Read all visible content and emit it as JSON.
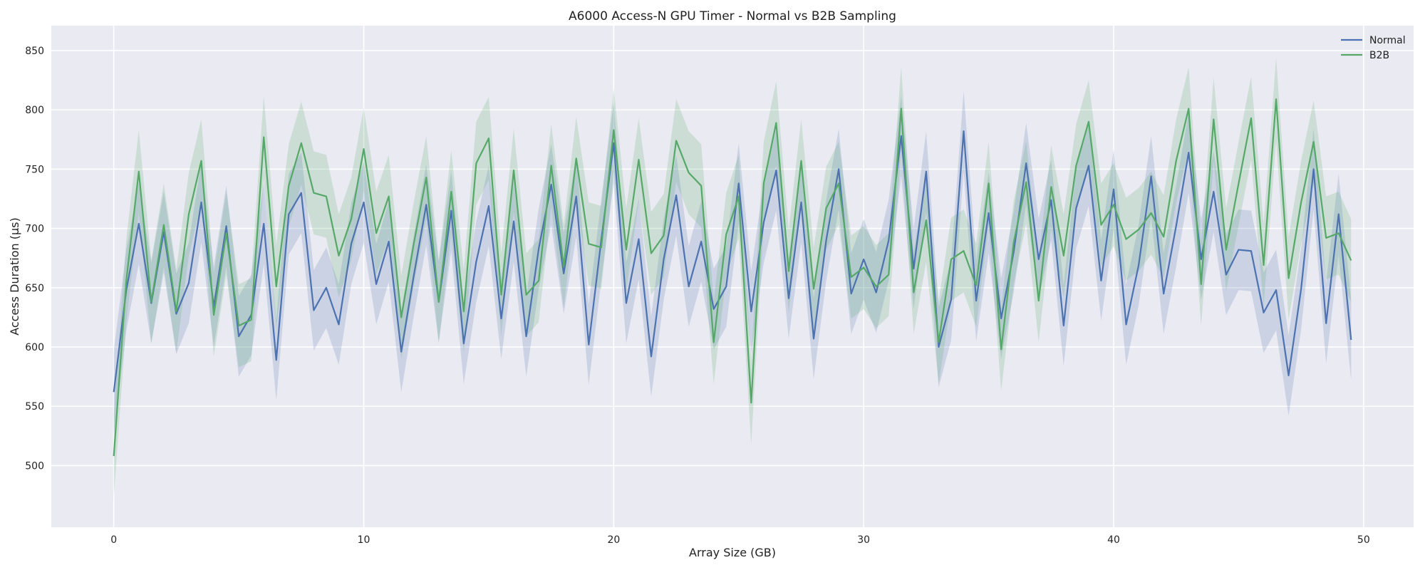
{
  "chart_data": {
    "type": "line",
    "title": "A6000 Access-N GPU Timer - Normal vs B2B Sampling",
    "xlabel": "Array Size (GB)",
    "ylabel": "Access Duration (μs)",
    "xlim": [
      -2.5,
      52.0
    ],
    "ylim": [
      448,
      871
    ],
    "xticks": [
      0,
      10,
      20,
      30,
      40,
      50
    ],
    "yticks": [
      500,
      550,
      600,
      650,
      700,
      750,
      800,
      850
    ],
    "grid": true,
    "legend_position": "top-right",
    "background_color": "#eaeaf2",
    "x": [
      0,
      0.5,
      1,
      1.5,
      2,
      2.5,
      3,
      3.5,
      4,
      4.5,
      5,
      5.5,
      6,
      6.5,
      7,
      7.5,
      8,
      8.5,
      9,
      9.5,
      10,
      10.5,
      11,
      11.5,
      12,
      12.5,
      13,
      13.5,
      14,
      14.5,
      15,
      15.5,
      16,
      16.5,
      17,
      17.5,
      18,
      18.5,
      19,
      19.5,
      20,
      20.5,
      21,
      21.5,
      22,
      22.5,
      23,
      23.5,
      24,
      24.5,
      25,
      25.5,
      26,
      26.5,
      27,
      27.5,
      28,
      28.5,
      29,
      29.5,
      30,
      30.5,
      31,
      31.5,
      32,
      32.5,
      33,
      33.5,
      34,
      34.5,
      35,
      35.5,
      36,
      36.5,
      37,
      37.5,
      38,
      38.5,
      39,
      39.5,
      40,
      40.5,
      41,
      41.5,
      42,
      42.5,
      43,
      43.5,
      44,
      44.5,
      45,
      45.5,
      46,
      46.5,
      47,
      47.5,
      48,
      48.5,
      49,
      49.5
    ],
    "series": [
      {
        "name": "Normal",
        "color": "#4c72b0",
        "values": [
          562,
          648,
          704,
          637,
          697,
          628,
          654,
          722,
          634,
          702,
          609,
          627,
          704,
          589,
          712,
          730,
          631,
          650,
          619,
          687,
          722,
          653,
          689,
          596,
          660,
          720,
          638,
          715,
          603,
          672,
          719,
          624,
          706,
          609,
          683,
          737,
          662,
          727,
          602,
          690,
          772,
          637,
          691,
          592,
          674,
          728,
          651,
          689,
          632,
          651,
          738,
          630,
          705,
          749,
          641,
          722,
          607,
          690,
          750,
          645,
          674,
          646,
          690,
          778,
          666,
          748,
          600,
          640,
          782,
          639,
          713,
          624,
          680,
          755,
          674,
          724,
          618,
          717,
          753,
          656,
          733,
          619,
          669,
          744,
          645,
          702,
          764,
          674,
          731,
          661,
          682,
          681,
          629,
          648,
          576,
          649,
          750,
          620,
          712,
          606
        ],
        "lower": [
          527,
          614,
          670,
          603,
          663,
          594,
          620,
          688,
          600,
          668,
          575,
          593,
          670,
          555,
          678,
          696,
          597,
          616,
          585,
          653,
          688,
          619,
          655,
          562,
          626,
          686,
          604,
          681,
          569,
          638,
          685,
          590,
          672,
          575,
          649,
          703,
          628,
          693,
          568,
          656,
          738,
          603,
          657,
          558,
          640,
          694,
          617,
          655,
          598,
          617,
          704,
          596,
          671,
          715,
          607,
          688,
          573,
          656,
          716,
          611,
          640,
          612,
          656,
          744,
          632,
          714,
          566,
          606,
          748,
          605,
          679,
          590,
          646,
          721,
          640,
          690,
          584,
          683,
          719,
          622,
          699,
          585,
          635,
          710,
          611,
          668,
          730,
          640,
          697,
          627,
          648,
          647,
          595,
          614,
          542,
          615,
          716,
          586,
          678,
          572
        ],
        "upper": [
          597,
          682,
          738,
          671,
          731,
          662,
          688,
          756,
          668,
          736,
          643,
          661,
          738,
          623,
          746,
          764,
          665,
          684,
          653,
          721,
          756,
          687,
          723,
          630,
          694,
          754,
          672,
          749,
          637,
          706,
          753,
          658,
          740,
          643,
          717,
          771,
          696,
          761,
          636,
          724,
          806,
          671,
          725,
          626,
          708,
          762,
          685,
          723,
          666,
          685,
          772,
          664,
          739,
          783,
          675,
          756,
          641,
          724,
          784,
          679,
          708,
          680,
          724,
          812,
          700,
          782,
          634,
          674,
          816,
          673,
          747,
          658,
          714,
          789,
          708,
          758,
          652,
          751,
          787,
          690,
          767,
          653,
          703,
          778,
          679,
          736,
          798,
          708,
          765,
          695,
          716,
          715,
          663,
          682,
          610,
          683,
          784,
          654,
          746,
          640
        ]
      },
      {
        "name": "B2B",
        "color": "#55a868",
        "values": [
          508,
          656,
          748,
          638,
          703,
          630,
          712,
          757,
          627,
          696,
          618,
          623,
          777,
          651,
          736,
          772,
          730,
          727,
          677,
          708,
          767,
          696,
          727,
          625,
          687,
          743,
          638,
          731,
          630,
          755,
          776,
          644,
          749,
          644,
          656,
          753,
          668,
          759,
          687,
          684,
          783,
          682,
          758,
          679,
          694,
          774,
          747,
          736,
          604,
          695,
          727,
          553,
          738,
          789,
          664,
          757,
          649,
          717,
          738,
          659,
          667,
          651,
          661,
          801,
          646,
          707,
          604,
          674,
          681,
          652,
          738,
          598,
          688,
          739,
          639,
          735,
          677,
          753,
          790,
          703,
          720,
          691,
          699,
          713,
          693,
          757,
          801,
          653,
          792,
          682,
          738,
          793,
          669,
          809,
          658,
          722,
          773,
          692,
          696,
          673
        ],
        "lower": [
          473,
          621,
          713,
          603,
          668,
          595,
          677,
          722,
          592,
          661,
          583,
          588,
          742,
          616,
          701,
          737,
          695,
          692,
          642,
          673,
          732,
          661,
          692,
          590,
          652,
          708,
          603,
          696,
          595,
          720,
          741,
          609,
          714,
          609,
          621,
          718,
          633,
          724,
          652,
          649,
          748,
          647,
          723,
          644,
          659,
          739,
          712,
          701,
          569,
          660,
          692,
          518,
          703,
          754,
          629,
          722,
          614,
          682,
          703,
          624,
          632,
          616,
          626,
          766,
          611,
          672,
          569,
          639,
          646,
          617,
          703,
          563,
          653,
          704,
          604,
          700,
          642,
          718,
          755,
          668,
          685,
          656,
          664,
          678,
          658,
          722,
          766,
          618,
          757,
          647,
          703,
          758,
          634,
          774,
          623,
          687,
          738,
          657,
          661,
          638
        ],
        "upper": [
          543,
          691,
          783,
          673,
          738,
          665,
          747,
          792,
          662,
          731,
          653,
          658,
          812,
          686,
          771,
          807,
          765,
          762,
          712,
          743,
          802,
          731,
          762,
          660,
          722,
          778,
          673,
          766,
          665,
          790,
          811,
          679,
          784,
          679,
          691,
          788,
          703,
          794,
          722,
          719,
          818,
          717,
          793,
          714,
          729,
          809,
          782,
          771,
          639,
          730,
          762,
          588,
          773,
          824,
          699,
          792,
          684,
          752,
          773,
          694,
          702,
          686,
          696,
          836,
          681,
          742,
          639,
          709,
          716,
          687,
          773,
          633,
          723,
          774,
          674,
          770,
          712,
          788,
          825,
          738,
          755,
          726,
          734,
          748,
          728,
          792,
          836,
          688,
          827,
          717,
          773,
          828,
          704,
          844,
          693,
          757,
          808,
          727,
          731,
          708
        ]
      }
    ]
  }
}
